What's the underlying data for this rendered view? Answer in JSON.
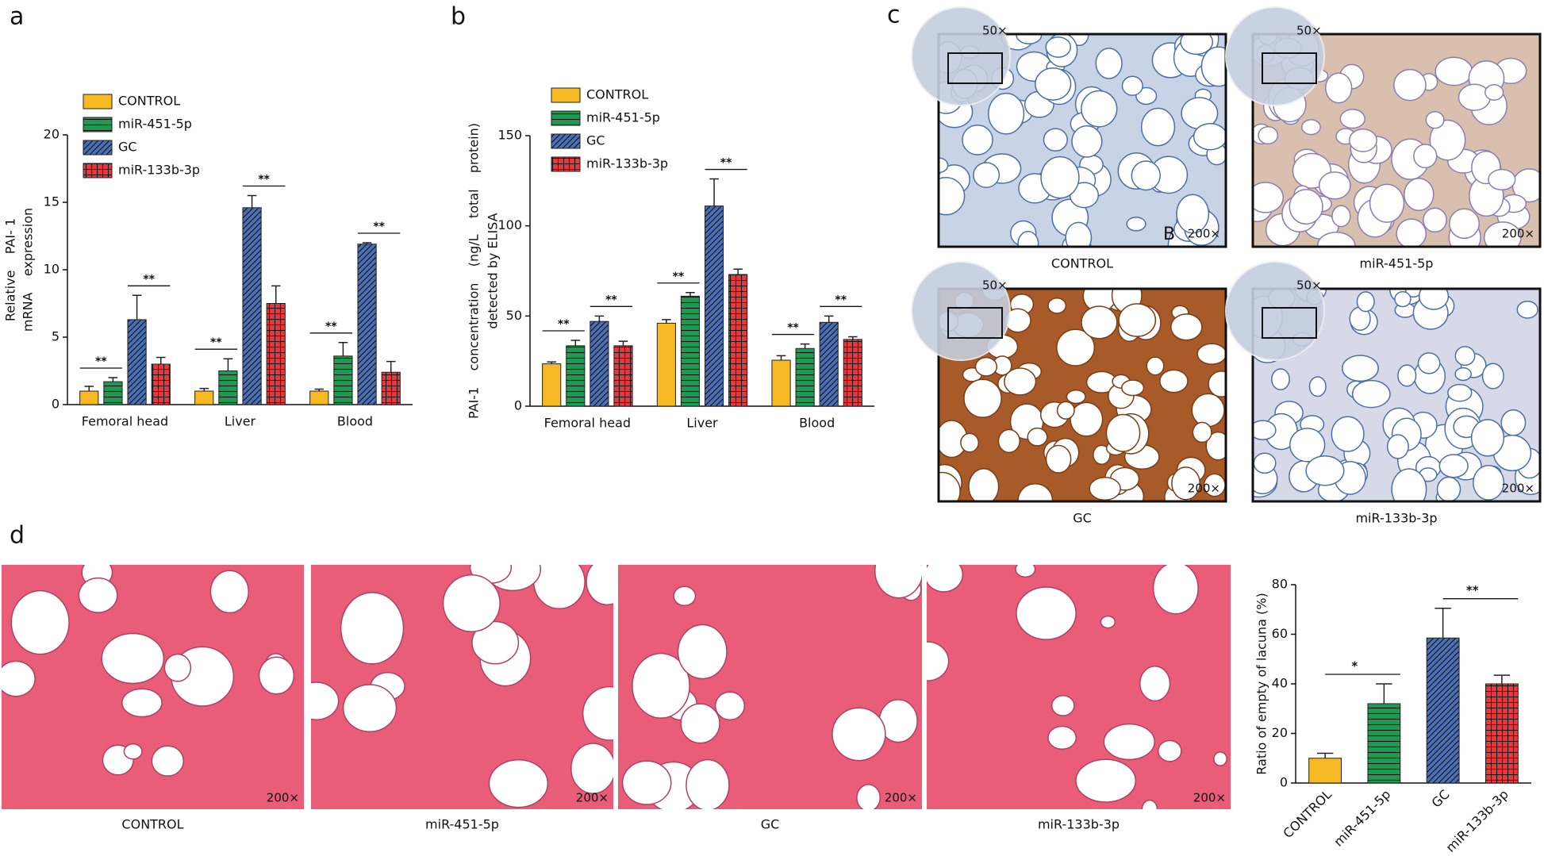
{
  "panel_labels": [
    "a",
    "b",
    "c",
    "d"
  ],
  "chart_data": [
    {
      "type": "bar",
      "ylabel": [
        "Relative    PAI- 1",
        "mRNA    expression"
      ],
      "categories": [
        "Femoral head",
        "Liver",
        "Blood"
      ],
      "ylim": [
        0,
        20
      ],
      "yticks": [
        0,
        5,
        10,
        15,
        20
      ],
      "series": [
        {
          "name": "CONTROL",
          "color": "#f6b924",
          "hatch": "none",
          "values": [
            1.0,
            1.0,
            1.0
          ],
          "errors": [
            0.35,
            0.2,
            0.15
          ]
        },
        {
          "name": "miR-451-5p",
          "color": "#1f9a55",
          "hatch": "horizontal",
          "values": [
            1.7,
            2.5,
            3.6
          ],
          "errors": [
            0.3,
            0.9,
            1.0
          ]
        },
        {
          "name": "GC",
          "color": "#4a6fb5",
          "hatch": "diagonal",
          "values": [
            6.3,
            14.6,
            11.9
          ],
          "errors": [
            1.8,
            0.9,
            0.1
          ]
        },
        {
          "name": "miR-133b-3p",
          "color": "#e8383d",
          "hatch": "grid",
          "values": [
            3.0,
            7.5,
            2.4
          ],
          "errors": [
            0.5,
            1.3,
            0.8
          ]
        }
      ],
      "annotations": [
        "**",
        "**",
        "**",
        "**",
        "**",
        "**"
      ]
    },
    {
      "type": "bar",
      "ylabel": [
        "PAI-1    concentration    (ng/L    total    protein)",
        "detected by ELISA"
      ],
      "categories": [
        "Femoral head",
        "Liver",
        "Blood"
      ],
      "ylim": [
        0,
        150
      ],
      "yticks": [
        0,
        50,
        100,
        150
      ],
      "series": [
        {
          "name": "CONTROL",
          "color": "#f6b924",
          "hatch": "none",
          "values": [
            23.5,
            46,
            25.5
          ],
          "errors": [
            1,
            2,
            2.5
          ]
        },
        {
          "name": "miR-451-5p",
          "color": "#1f9a55",
          "hatch": "horizontal",
          "values": [
            33.5,
            61,
            32
          ],
          "errors": [
            3,
            2,
            2.5
          ]
        },
        {
          "name": "GC",
          "color": "#4a6fb5",
          "hatch": "diagonal",
          "values": [
            47,
            111,
            46.5
          ],
          "errors": [
            3,
            15,
            3.5
          ]
        },
        {
          "name": "miR-133b-3p",
          "color": "#e8383d",
          "hatch": "grid",
          "values": [
            33.5,
            73,
            37
          ],
          "errors": [
            2.5,
            3,
            1.5
          ]
        }
      ],
      "annotations": [
        "**",
        "**",
        "**",
        "**",
        "**",
        "**"
      ]
    },
    {
      "type": "bar",
      "ylabel": "Ratio of empty of lacuna (%)",
      "categories": [
        "CONTROL",
        "miR-451-5p",
        "GC",
        "miR-133b-3p"
      ],
      "values": [
        10,
        32,
        58.5,
        40
      ],
      "errors": [
        2,
        8,
        12,
        3.5
      ],
      "colors": [
        "#f6b924",
        "#1f9a55",
        "#4a6fb5",
        "#e8383d"
      ],
      "hatches": [
        "none",
        "horizontal",
        "diagonal",
        "grid"
      ],
      "ylim": [
        0,
        80
      ],
      "yticks": [
        0,
        20,
        40,
        60,
        80
      ],
      "annotations": [
        "*",
        "**"
      ]
    }
  ],
  "ihc": {
    "labels": [
      "CONTROL",
      "miR-451-5p",
      "GC",
      "miR-133b-3p"
    ],
    "magnification": "200×",
    "inset_magnification": "50×",
    "marker": "B"
  },
  "he": {
    "labels": [
      "CONTROL",
      "miR-451-5p",
      "GC",
      "miR-133b-3p"
    ],
    "magnification": "200×"
  }
}
